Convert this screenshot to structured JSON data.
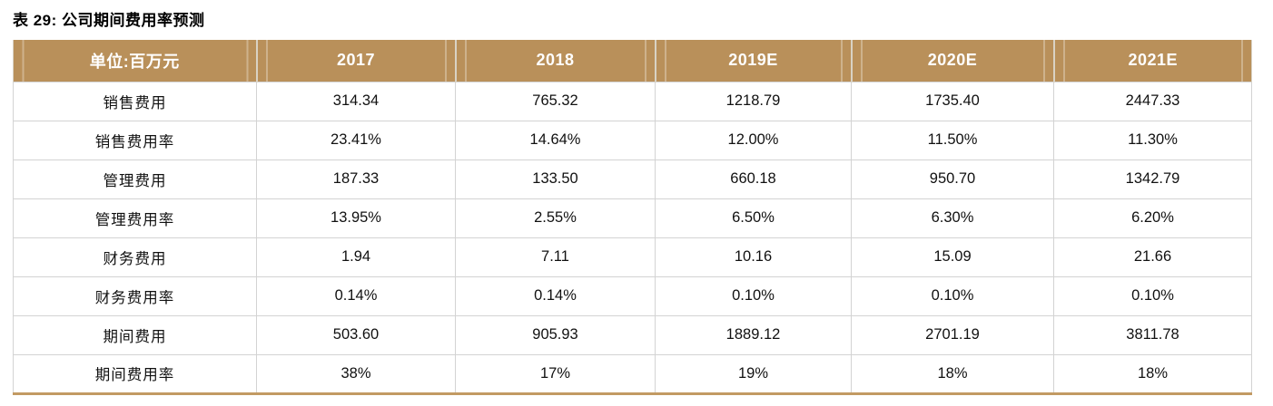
{
  "title": "表 29: 公司期间费用率预测",
  "table": {
    "unit_header": "单位:百万元",
    "columns": [
      "2017",
      "2018",
      "2019E",
      "2020E",
      "2021E"
    ],
    "rows": [
      {
        "label": "销售费用",
        "values": [
          "314.34",
          "765.32",
          "1218.79",
          "1735.40",
          "2447.33"
        ]
      },
      {
        "label": "销售费用率",
        "values": [
          "23.41%",
          "14.64%",
          "12.00%",
          "11.50%",
          "11.30%"
        ]
      },
      {
        "label": "管理费用",
        "values": [
          "187.33",
          "133.50",
          "660.18",
          "950.70",
          "1342.79"
        ]
      },
      {
        "label": "管理费用率",
        "values": [
          "13.95%",
          "2.55%",
          "6.50%",
          "6.30%",
          "6.20%"
        ]
      },
      {
        "label": "财务费用",
        "values": [
          "1.94",
          "7.11",
          "10.16",
          "15.09",
          "21.66"
        ]
      },
      {
        "label": "财务费用率",
        "values": [
          "0.14%",
          "0.14%",
          "0.10%",
          "0.10%",
          "0.10%"
        ]
      },
      {
        "label": "期间费用",
        "values": [
          "503.60",
          "905.93",
          "1889.12",
          "2701.19",
          "3811.78"
        ]
      },
      {
        "label": "期间费用率",
        "values": [
          "38%",
          "17%",
          "19%",
          "18%",
          "18%"
        ]
      }
    ]
  },
  "colors": {
    "header_bg": "#B9905A",
    "header_separator": "#D9D2C4",
    "header_text": "#FFFFFF",
    "grid": "#D3D3D3",
    "bottom_rule": "#C29A63",
    "text": "#111111"
  }
}
